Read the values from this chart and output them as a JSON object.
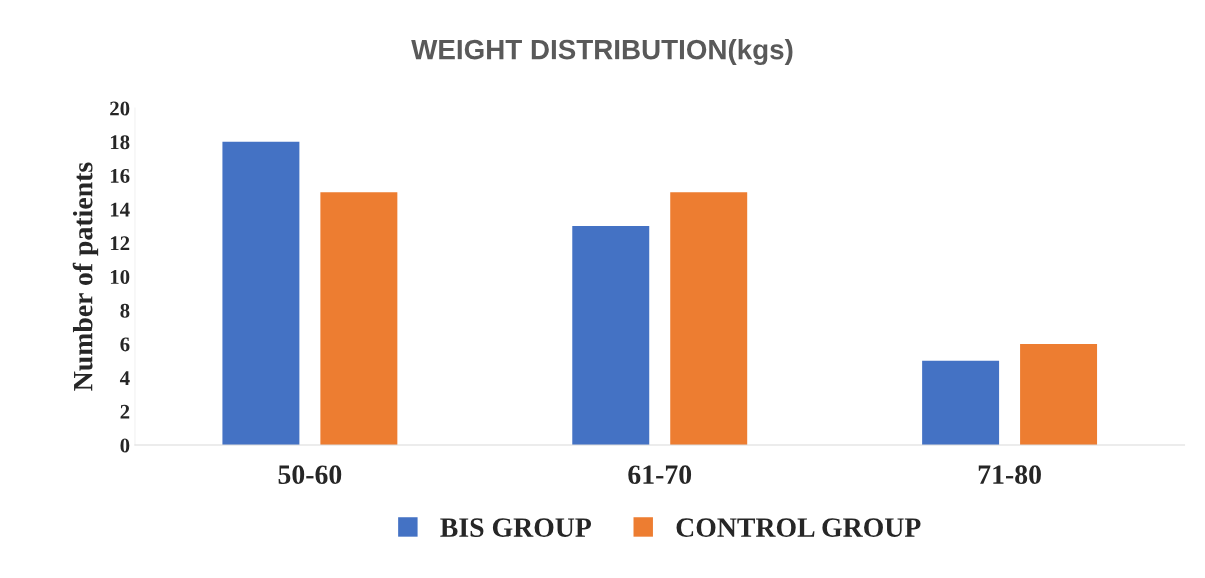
{
  "chart_data": {
    "type": "bar",
    "title": "WEIGHT DISTRIBUTION(kgs)",
    "ylabel": "Number of patients",
    "categories": [
      "50-60",
      "61-70",
      "71-80"
    ],
    "series": [
      {
        "name": "BIS GROUP",
        "color": "#4472c4",
        "values": [
          18,
          13,
          5
        ]
      },
      {
        "name": "CONTROL GROUP",
        "color": "#ed7d31",
        "values": [
          15,
          15,
          6
        ]
      }
    ],
    "ylim": [
      0,
      20
    ],
    "yticks": [
      0,
      2,
      4,
      6,
      8,
      10,
      12,
      14,
      16,
      18,
      20
    ],
    "grid": false,
    "legend": "bottom"
  }
}
